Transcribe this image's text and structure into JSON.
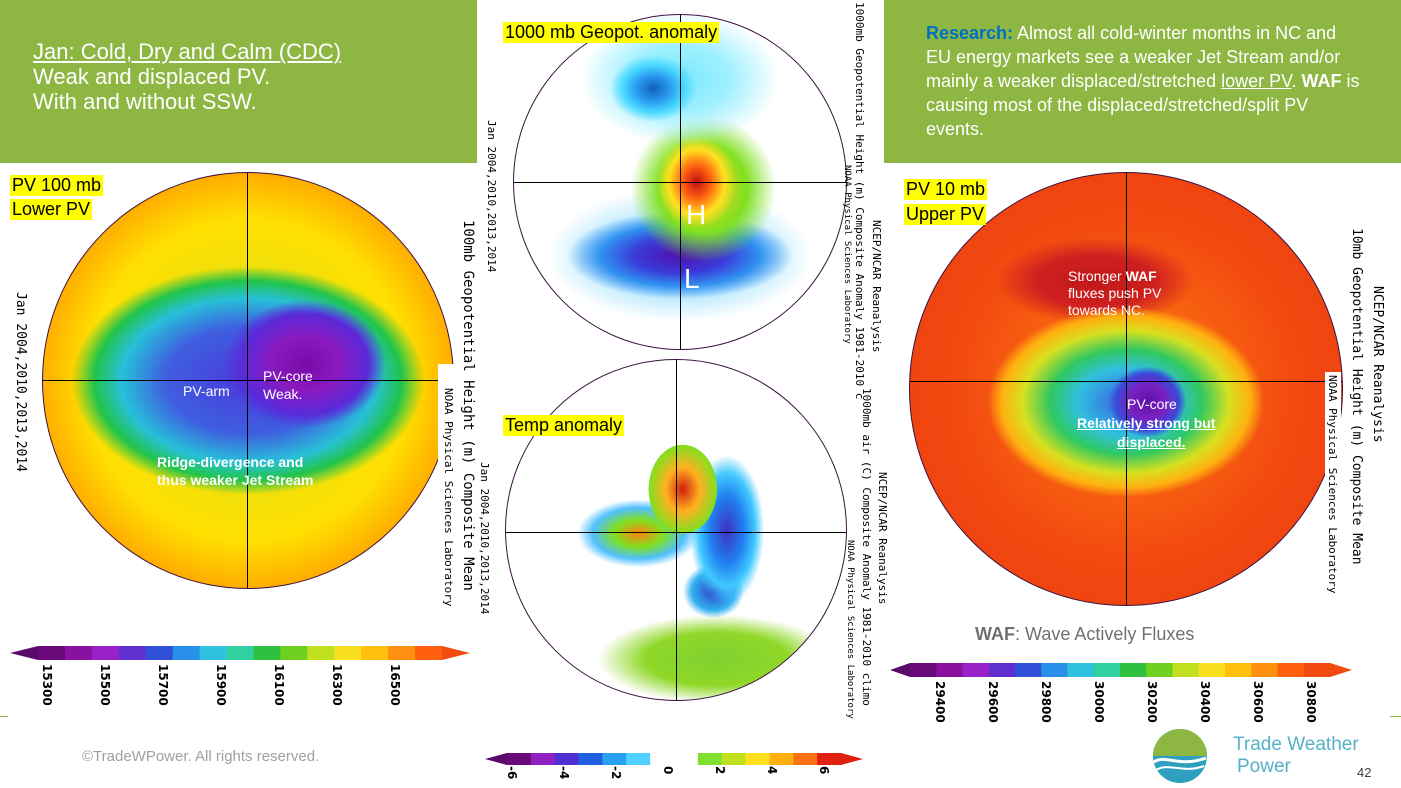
{
  "slide": {
    "number": "42",
    "copyright": "©TradeWPower. All rights reserved.",
    "logo_line1": "Trade Weather",
    "logo_line2": "Power"
  },
  "header_left": {
    "title": "Jan: Cold, Dry and Calm (CDC)",
    "line2": "Weak and displaced PV.",
    "line3": "With and without SSW."
  },
  "header_right": {
    "lead": "Research:",
    "text_a": " Almost all cold-winter months in NC and EU energy markets see a weaker Jet Stream and/or mainly a weaker displaced/stretched ",
    "lower_pv": "lower PV",
    "text_b": ". ",
    "waf": "WAF",
    "text_c": " is causing most of the displaced/stretched/split PV events."
  },
  "map_left": {
    "label1": "PV 100 mb",
    "label2": "Lower PV",
    "vtitle": "100mb  Geopotential  Height  (m)  Composite  Mean",
    "vdates": "Jan  2004,2010,2013,2014",
    "vlab": "NOAA  Physical  Sciences  Laboratory",
    "pv_arm": "PV-arm",
    "pv_core": "PV-core",
    "weak": "Weak.",
    "ridge1": "Ridge-divergence and",
    "ridge2": "thus weaker Jet Stream",
    "colorbar_ticks": [
      "15300",
      "15500",
      "15700",
      "15900",
      "16100",
      "16300",
      "16500"
    ]
  },
  "map_top": {
    "label": "1000 mb Geopot. anomaly",
    "vtitle": "NCEP/NCAR  Reanalysis",
    "vtitle2": "1000mb  Geopotential  Height  (m)  Composite  Anomaly  1981-2010  c",
    "vlab": "NOAA  Physical  Sciences  Laboratory",
    "vdates": "Jan  2004,2010,2013,2014",
    "h": "H",
    "l": "L"
  },
  "map_bottom": {
    "label": "Temp anomaly",
    "vtitle": "NCEP/NCAR  Reanalysis",
    "vtitle2": "1000mb  air  (C)  Composite  Anomaly  1981-2010  climo",
    "vlab": "NOAA  Physical  Sciences  Laboratory",
    "vdates": "Jan  2004,2010,2013,2014",
    "colorbar_ticks": [
      "-6",
      "-4",
      "-2",
      "0",
      "2",
      "4",
      "6"
    ]
  },
  "map_right": {
    "label1": "PV 10 mb",
    "label2": "Upper PV",
    "vtitle": "NCEP/NCAR  Reanalysis",
    "vtitle2": "10mb  Geopotential  Height  (m)  Composite  Mean",
    "vlab": "NOAA  Physical  Sciences  Laboratory",
    "waf_note1": "Stronger ",
    "waf_note_bold": "WAF",
    "waf_note2": "fluxes push PV",
    "waf_note3": "towards NC.",
    "pv_core": "PV-core",
    "strong1": "Relatively strong but",
    "strong2": "displaced.",
    "waf_def_bold": "WAF",
    "waf_def": ": Wave Actively Fluxes",
    "colorbar_ticks": [
      "29400",
      "29600",
      "29800",
      "30000",
      "30200",
      "30400",
      "30600",
      "30800"
    ]
  }
}
